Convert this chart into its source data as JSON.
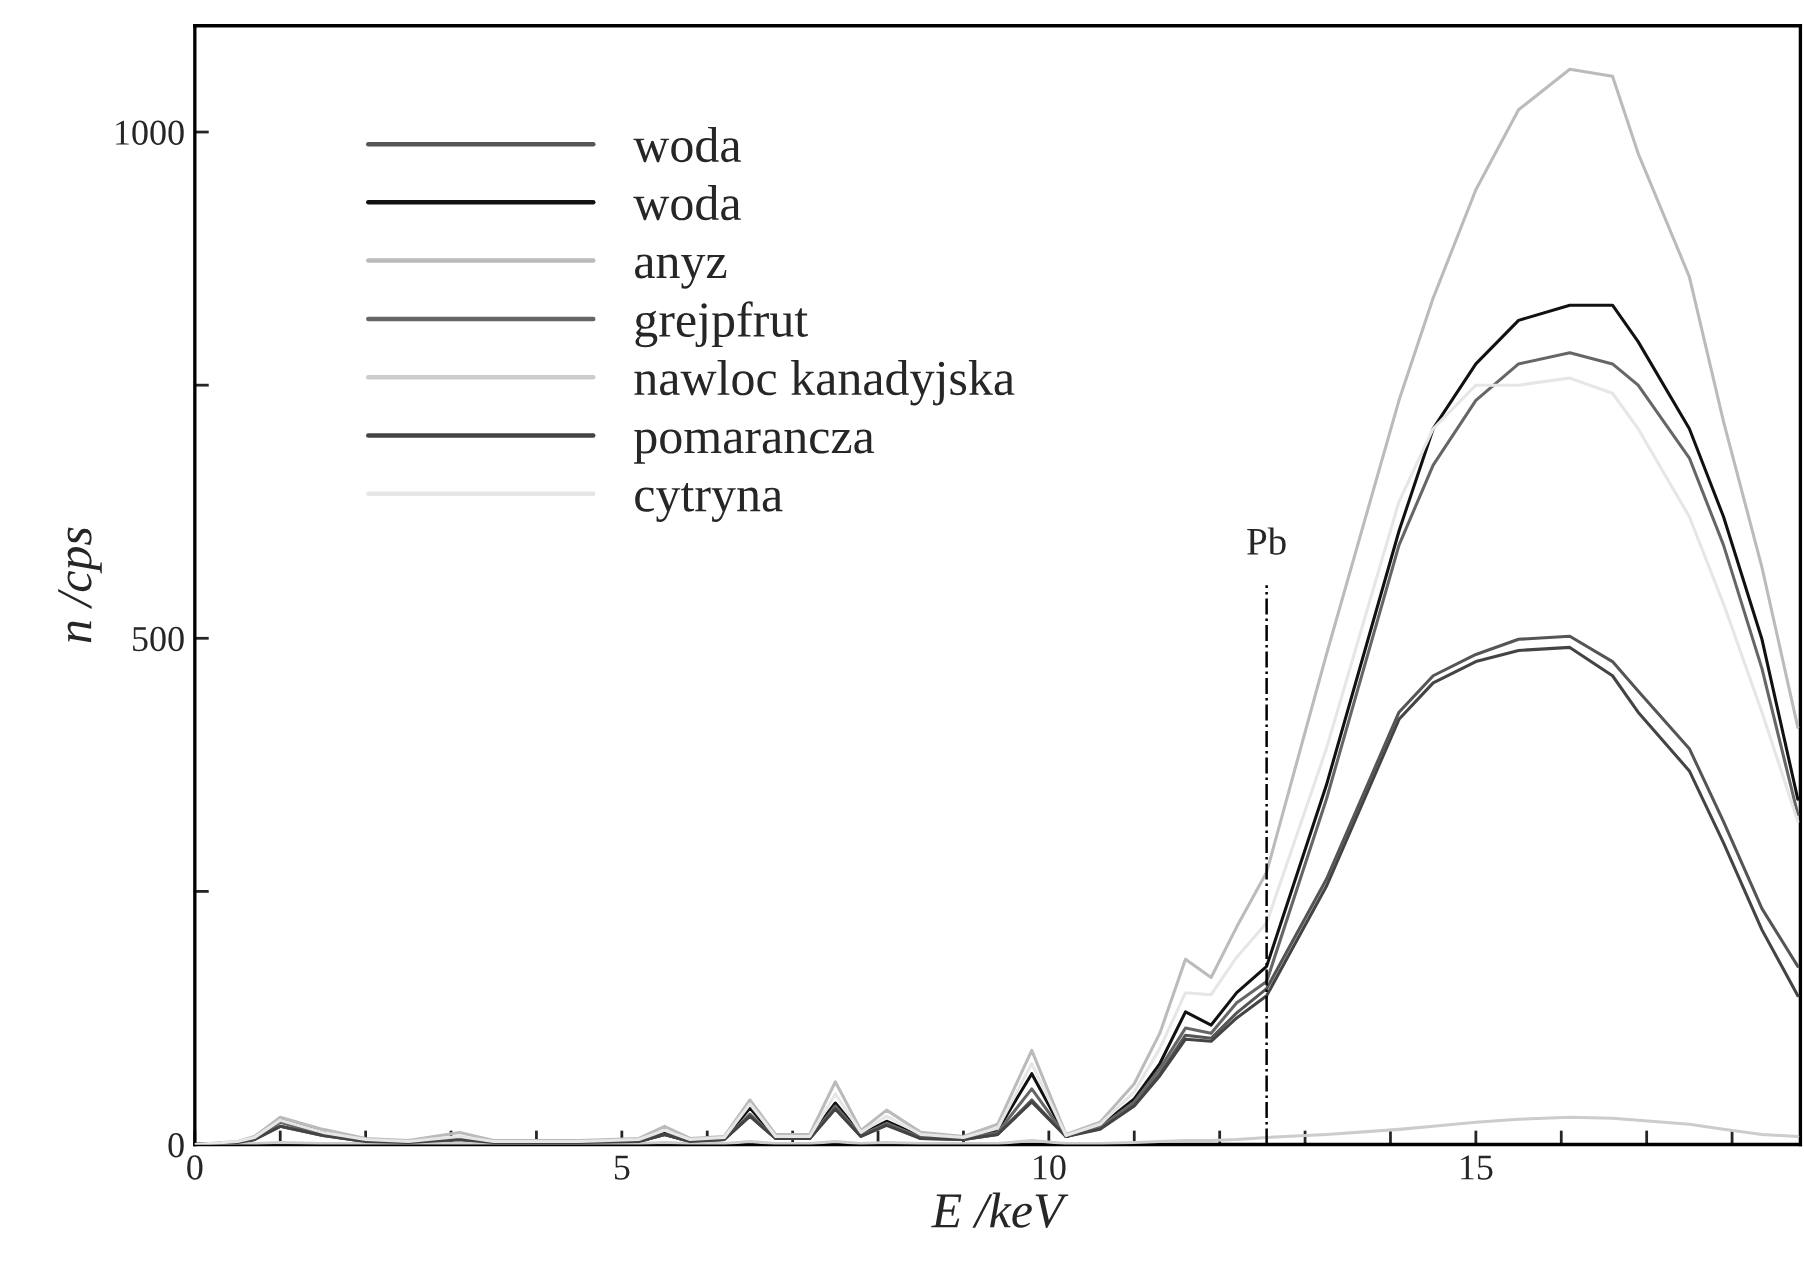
{
  "chart_data": {
    "type": "line",
    "xlabel": "E /keV",
    "ylabel": "n /cps",
    "x": [
      0,
      0.1,
      0.35,
      0.5,
      0.7,
      1.0,
      1.5,
      2,
      2.5,
      3.1,
      3.5,
      4.5,
      5.2,
      5.5,
      5.8,
      6.2,
      6.5,
      6.8,
      7.2,
      7.5,
      7.8,
      8.1,
      8.5,
      9,
      9.4,
      9.8,
      10.2,
      10.6,
      11,
      11.3,
      11.6,
      11.9,
      12.2,
      12.55,
      13.25,
      14.1,
      14.5,
      15.0,
      15.5,
      16.1,
      16.6,
      16.9,
      17.5,
      17.9,
      18.35,
      18.77
    ],
    "series": [
      {
        "name": "woda",
        "color": "#555555",
        "values": [
          0,
          null,
          null,
          2,
          5,
          18,
          9,
          3,
          2,
          5,
          2,
          2,
          3,
          10,
          3,
          5,
          28,
          6,
          6,
          36,
          8,
          20,
          6,
          5,
          10,
          44,
          8,
          16,
          40,
          70,
          108,
          105,
          130,
          154,
          262,
          427,
          463,
          484,
          499,
          502,
          477,
          448,
          391,
          319,
          233,
          176
        ]
      },
      {
        "name": "woda",
        "color": "#111111",
        "values": [
          0,
          null,
          null,
          2,
          6,
          26,
          12,
          4,
          3,
          6,
          3,
          3,
          4,
          12,
          4,
          6,
          36,
          7,
          8,
          41,
          10,
          23,
          8,
          6,
          14,
          70,
          8,
          18,
          45,
          80,
          131,
          118,
          150,
          176,
          355,
          606,
          707,
          771,
          814,
          829,
          829,
          793,
          707,
          620,
          499,
          341
        ]
      },
      {
        "name": "anyz",
        "color": "#bbbbbb",
        "values": [
          0,
          null,
          null,
          3,
          8,
          27,
          15,
          6,
          4,
          12,
          4,
          4,
          6,
          18,
          6,
          8,
          44,
          10,
          10,
          62,
          14,
          34,
          12,
          8,
          20,
          93,
          10,
          22,
          60,
          110,
          183,
          165,
          215,
          269,
          484,
          735,
          836,
          943,
          1022,
          1062,
          1055,
          979,
          857,
          714,
          570,
          412
        ]
      },
      {
        "name": "grejpfrut",
        "color": "#666666",
        "values": [
          0,
          null,
          null,
          2,
          5,
          22,
          10,
          3,
          2,
          5,
          2,
          2,
          3,
          10,
          3,
          5,
          30,
          6,
          6,
          38,
          9,
          21,
          7,
          5,
          12,
          55,
          8,
          17,
          42,
          75,
          115,
          110,
          140,
          161,
          341,
          592,
          671,
          735,
          771,
          782,
          771,
          750,
          678,
          592,
          470,
          326
        ]
      },
      {
        "name": "nawloc kanadyjska",
        "color": "#cccccc",
        "values": [
          0,
          null,
          null,
          1,
          1,
          2,
          1,
          1,
          1,
          1,
          1,
          1,
          1,
          2,
          1,
          1,
          3,
          1,
          1,
          3,
          1,
          2,
          1,
          1,
          1,
          4,
          1,
          1,
          2,
          3,
          4,
          4,
          5,
          7,
          10,
          15,
          18,
          22,
          25,
          27,
          26,
          24,
          20,
          15,
          10,
          8
        ]
      },
      {
        "name": "pomarancza",
        "color": "#444444",
        "values": [
          0,
          null,
          null,
          2,
          5,
          18,
          9,
          3,
          2,
          5,
          2,
          2,
          3,
          10,
          3,
          5,
          28,
          6,
          6,
          35,
          8,
          19,
          6,
          5,
          10,
          42,
          8,
          15,
          38,
          68,
          104,
          102,
          125,
          147,
          255,
          420,
          456,
          477,
          488,
          491,
          463,
          427,
          369,
          298,
          212,
          147
        ]
      },
      {
        "name": "cytryna",
        "color": "#e6e6e6",
        "values": [
          0,
          null,
          null,
          3,
          7,
          24,
          12,
          5,
          3,
          8,
          3,
          3,
          5,
          14,
          5,
          7,
          40,
          8,
          8,
          50,
          12,
          28,
          10,
          7,
          16,
          80,
          9,
          20,
          52,
          95,
          150,
          148,
          185,
          219,
          391,
          635,
          707,
          750,
          750,
          757,
          742,
          707,
          620,
          534,
          427,
          319
        ]
      }
    ],
    "xlim": [
      0,
      18.8
    ],
    "ylim": [
      0,
      1105
    ],
    "xticks": [
      0,
      {
        "value": 1,
        "label": null
      },
      {
        "value": 2,
        "label": null
      },
      {
        "value": 3,
        "label": null
      },
      {
        "value": 4,
        "label": null
      },
      5,
      {
        "value": 6,
        "label": null
      },
      {
        "value": 7,
        "label": null
      },
      {
        "value": 8,
        "label": null
      },
      {
        "value": 9,
        "label": null
      },
      10,
      {
        "value": 11,
        "label": null
      },
      {
        "value": 12,
        "label": null
      },
      {
        "value": 13,
        "label": null
      },
      {
        "value": 14,
        "label": null
      },
      15,
      {
        "value": 16,
        "label": null
      },
      {
        "value": 17,
        "label": null
      },
      {
        "value": 18,
        "label": null
      }
    ],
    "yticks": [
      0,
      {
        "value": 250,
        "label": null
      },
      500,
      {
        "value": 750,
        "label": null
      },
      1000
    ],
    "ref_lines": [
      {
        "axis": "x",
        "value": 12.55,
        "label": "Pb",
        "line_style": "dashed"
      }
    ],
    "legend": "top left",
    "grid": false,
    "marker": "none",
    "line_style": "solid"
  }
}
